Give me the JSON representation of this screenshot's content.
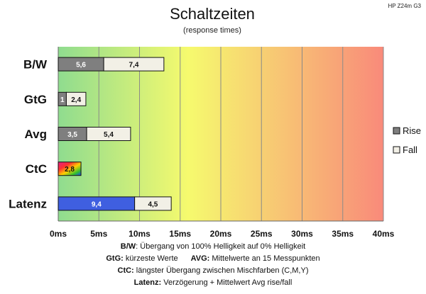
{
  "chart_data": {
    "type": "bar",
    "orientation": "horizontal",
    "stacked": true,
    "title": "Schaltzeiten",
    "subtitle": "(response times)",
    "model": "HP Z24m G3",
    "categories": [
      "B/W",
      "GtG",
      "Avg",
      "CtC",
      "Latenz"
    ],
    "series": [
      {
        "name": "Rise",
        "values": [
          5.6,
          1,
          3.5,
          2.8,
          9.4
        ],
        "labels": [
          "5,6",
          "1",
          "3,5",
          "2,8",
          "9,4"
        ],
        "color": "#7f7f7f"
      },
      {
        "name": "Fall",
        "values": [
          7.4,
          2.4,
          5.4,
          0,
          4.5
        ],
        "labels": [
          "7,4",
          "2,4",
          "5,4",
          "",
          "4,5"
        ],
        "color": "#f2f0e6"
      }
    ],
    "special_colors": {
      "CtC": "rainbow",
      "Latenz": "#3f5fe0"
    },
    "xlim": [
      0,
      40
    ],
    "xticks": [
      "0ms",
      "5ms",
      "10ms",
      "15ms",
      "20ms",
      "25ms",
      "30ms",
      "35ms",
      "40ms"
    ],
    "xtick_values": [
      0,
      5,
      10,
      15,
      20,
      25,
      30,
      35,
      40
    ],
    "legend": {
      "position": "right",
      "items": [
        "Rise",
        "Fall"
      ]
    },
    "background_gradient": [
      "#8fdc8f",
      "#f6fa6e",
      "#f98a7a"
    ],
    "grid": true
  },
  "notes": {
    "line1": {
      "label": "B/W",
      "text": ":  Übergang von 100% Helligkeit auf 0% Helligkeit"
    },
    "line2": {
      "label_a": "GtG:",
      "text_a": " kürzeste  Werte",
      "label_b": "AVG:",
      "text_b": " Mittelwerte  an 15 Messpunkten"
    },
    "line3": {
      "label": "CtC:",
      "text": " längster Übergang  zwischen Mischfarben  (C,M,Y)"
    },
    "line4": {
      "label": "Latenz:",
      "text": " Verzögerung  + Mittelwert Avg rise/fall"
    }
  }
}
